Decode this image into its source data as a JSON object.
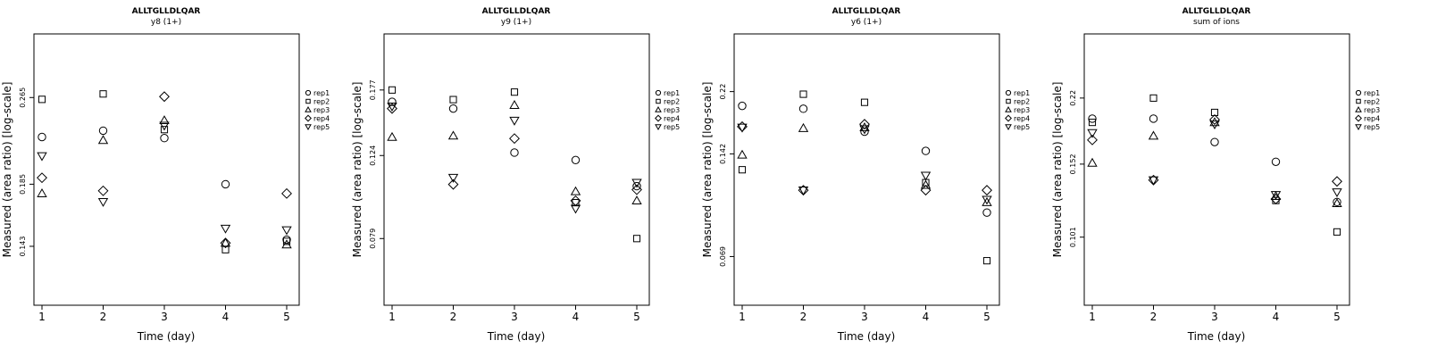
{
  "chart_data": [
    {
      "type": "scatter",
      "title": "ALLTGLLDLQAR",
      "subtitle": "y8 (1+)",
      "xlabel": "Time (day)",
      "ylabel": "Measured (area ratio) [log-scale]",
      "y_scale": "log",
      "x": [
        1,
        2,
        3,
        4,
        5
      ],
      "x_ticks": [
        "1",
        "2",
        "3",
        "4",
        "5"
      ],
      "y_ticks": [
        {
          "value": 0.143,
          "label": "0.143"
        },
        {
          "value": 0.185,
          "label": "0.185"
        },
        {
          "value": 0.265,
          "label": "0.265"
        }
      ],
      "ylim": [
        0.112,
        0.345
      ],
      "legend_position": "right",
      "series": [
        {
          "name": "rep1",
          "marker": "circle",
          "values": [
            0.225,
            0.231,
            0.224,
            0.185,
            0.147
          ]
        },
        {
          "name": "rep2",
          "marker": "square",
          "values": [
            0.263,
            0.269,
            0.232,
            0.141,
            0.146
          ]
        },
        {
          "name": "rep3",
          "marker": "triangle-up",
          "values": [
            0.178,
            0.222,
            0.241,
            0.145,
            0.144
          ]
        },
        {
          "name": "rep4",
          "marker": "diamond",
          "values": [
            0.19,
            0.18,
            0.266,
            0.145,
            0.178
          ]
        },
        {
          "name": "rep5",
          "marker": "triangle-down",
          "values": [
            0.208,
            0.172,
            0.236,
            0.154,
            0.153
          ]
        }
      ]
    },
    {
      "type": "scatter",
      "title": "ALLTGLLDLQAR",
      "subtitle": "y9 (1+)",
      "xlabel": "Time (day)",
      "ylabel": "Measured (area ratio) [log-scale]",
      "y_scale": "log",
      "x": [
        1,
        2,
        3,
        4,
        5
      ],
      "x_ticks": [
        "1",
        "2",
        "3",
        "4",
        "5"
      ],
      "y_ticks": [
        {
          "value": 0.079,
          "label": "0.079"
        },
        {
          "value": 0.124,
          "label": "0.124"
        },
        {
          "value": 0.177,
          "label": "0.177"
        }
      ],
      "ylim": [
        0.055,
        0.24
      ],
      "legend_position": "right",
      "series": [
        {
          "name": "rep1",
          "marker": "circle",
          "values": [
            0.166,
            0.16,
            0.126,
            0.121,
            0.105
          ]
        },
        {
          "name": "rep2",
          "marker": "square",
          "values": [
            0.177,
            0.168,
            0.175,
            0.096,
            0.079
          ]
        },
        {
          "name": "rep3",
          "marker": "triangle-up",
          "values": [
            0.137,
            0.138,
            0.163,
            0.102,
            0.097
          ]
        },
        {
          "name": "rep4",
          "marker": "diamond",
          "values": [
            0.16,
            0.106,
            0.136,
            0.097,
            0.103
          ]
        },
        {
          "name": "rep5",
          "marker": "triangle-down",
          "values": [
            0.162,
            0.11,
            0.15,
            0.093,
            0.107
          ]
        }
      ]
    },
    {
      "type": "scatter",
      "title": "ALLTGLLDLQAR",
      "subtitle": "y6 (1+)",
      "xlabel": "Time (day)",
      "ylabel": "Measured (area ratio) [log-scale]",
      "y_scale": "log",
      "x": [
        1,
        2,
        3,
        4,
        5
      ],
      "x_ticks": [
        "1",
        "2",
        "3",
        "4",
        "5"
      ],
      "y_ticks": [
        {
          "value": 0.069,
          "label": "0.069"
        },
        {
          "value": 0.142,
          "label": "0.142"
        },
        {
          "value": 0.22,
          "label": "0.22"
        }
      ],
      "ylim": [
        0.049,
        0.33
      ],
      "legend_position": "right",
      "series": [
        {
          "name": "rep1",
          "marker": "circle",
          "values": [
            0.199,
            0.195,
            0.166,
            0.145,
            0.094
          ]
        },
        {
          "name": "rep2",
          "marker": "square",
          "values": [
            0.127,
            0.216,
            0.204,
            0.116,
            0.067
          ]
        },
        {
          "name": "rep3",
          "marker": "triangle-up",
          "values": [
            0.141,
            0.17,
            0.171,
            0.114,
            0.101
          ]
        },
        {
          "name": "rep4",
          "marker": "diamond",
          "values": [
            0.172,
            0.11,
            0.175,
            0.11,
            0.11
          ]
        },
        {
          "name": "rep5",
          "marker": "triangle-down",
          "values": [
            0.171,
            0.11,
            0.169,
            0.122,
            0.103
          ]
        }
      ]
    },
    {
      "type": "scatter",
      "title": "ALLTGLLDLQAR",
      "subtitle": "sum of ions",
      "xlabel": "Time (day)",
      "ylabel": "Measured (area ratio) [log-scale]",
      "y_scale": "log",
      "x": [
        1,
        2,
        3,
        4,
        5
      ],
      "x_ticks": [
        "1",
        "2",
        "3",
        "4",
        "5"
      ],
      "y_ticks": [
        {
          "value": 0.101,
          "label": "0.101"
        },
        {
          "value": 0.152,
          "label": "0.152"
        },
        {
          "value": 0.22,
          "label": "0.22"
        }
      ],
      "ylim": [
        0.069,
        0.315
      ],
      "legend_position": "right",
      "series": [
        {
          "name": "rep1",
          "marker": "circle",
          "values": [
            0.196,
            0.196,
            0.172,
            0.154,
            0.123
          ]
        },
        {
          "name": "rep2",
          "marker": "square",
          "values": [
            0.192,
            0.22,
            0.203,
            0.124,
            0.104
          ]
        },
        {
          "name": "rep3",
          "marker": "triangle-up",
          "values": [
            0.153,
            0.178,
            0.192,
            0.127,
            0.122
          ]
        },
        {
          "name": "rep4",
          "marker": "diamond",
          "values": [
            0.174,
            0.139,
            0.195,
            0.125,
            0.138
          ]
        },
        {
          "name": "rep5",
          "marker": "triangle-down",
          "values": [
            0.181,
            0.139,
            0.19,
            0.128,
            0.13
          ]
        }
      ]
    }
  ]
}
